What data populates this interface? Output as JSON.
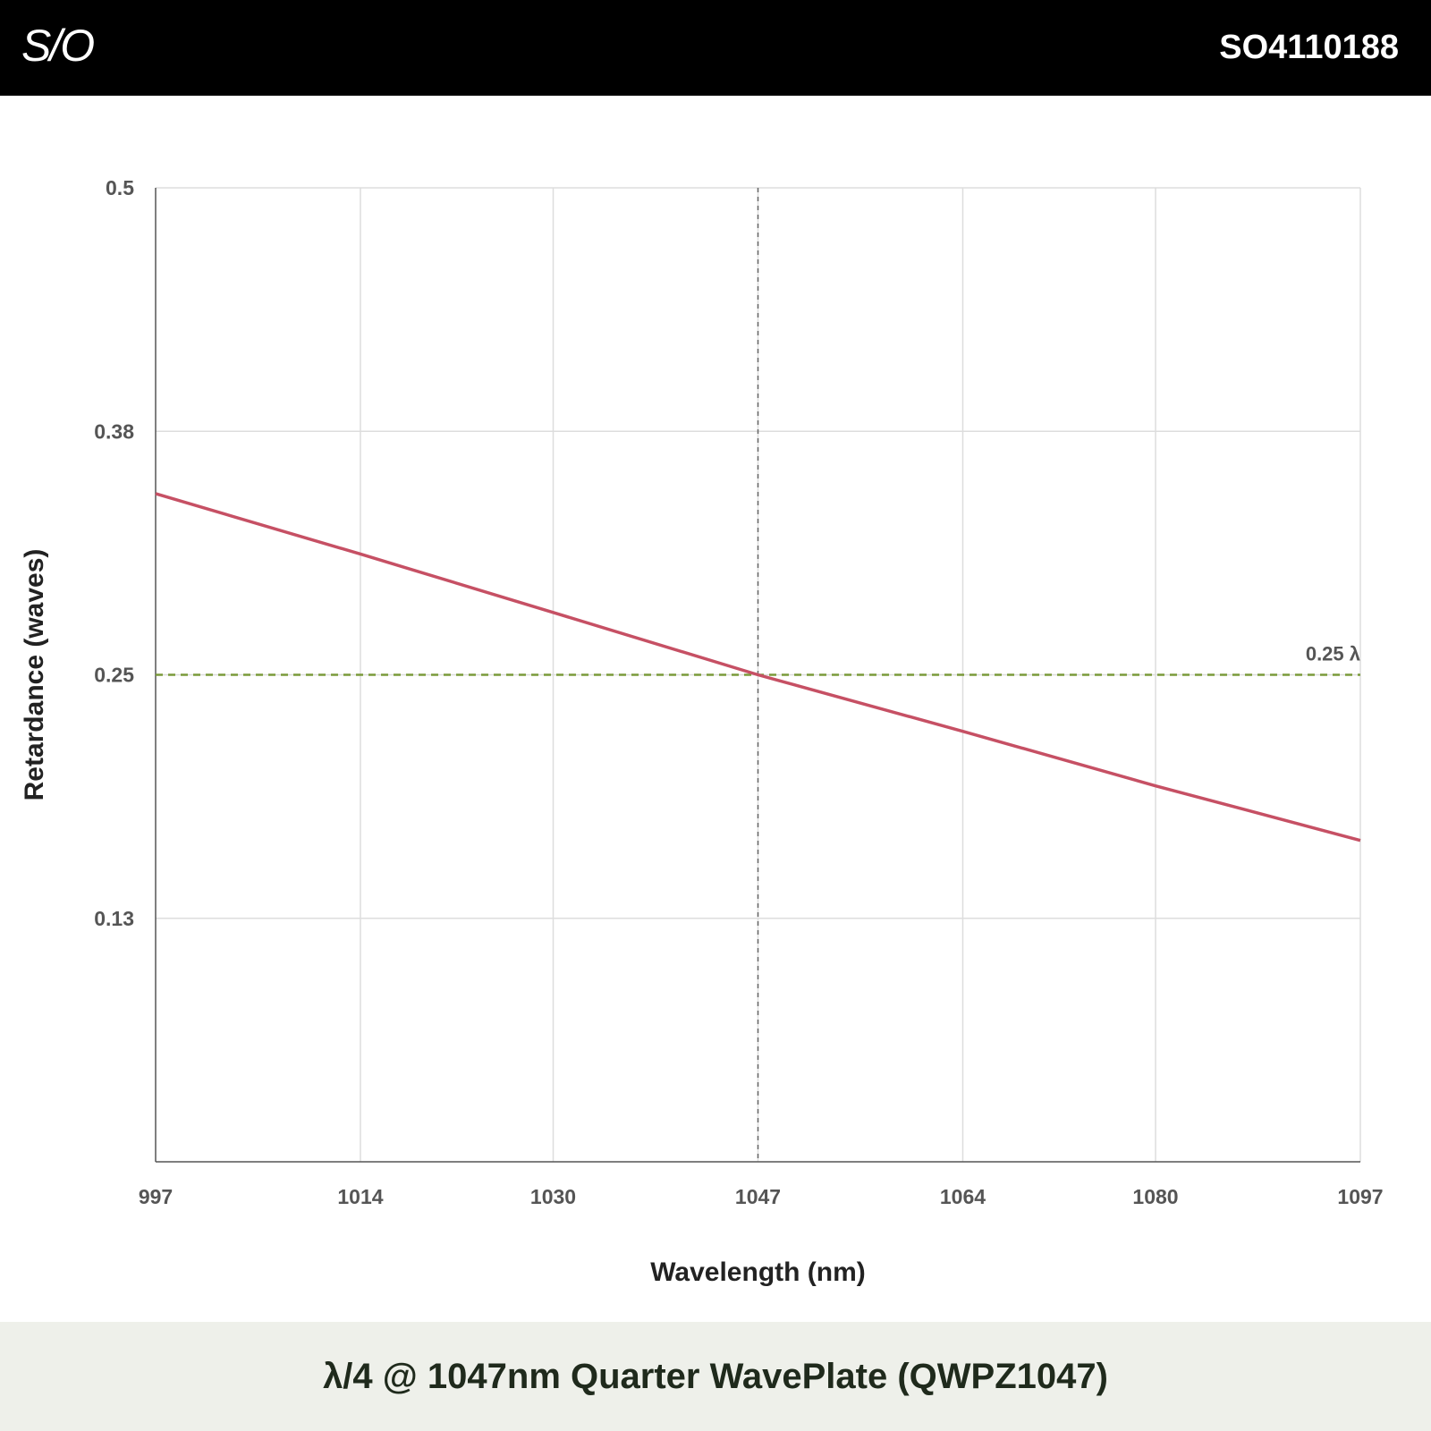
{
  "header": {
    "logo_text": "S/O",
    "part_number": "SO4110188"
  },
  "footer": {
    "product_title": "λ/4 @ 1047nm Quarter WavePlate (QWPZ1047)"
  },
  "colors": {
    "header_bg": "#000000",
    "footer_bg": "#eef0ea",
    "series_line": "#c65064",
    "reference_line": "#7a9a3a",
    "center_marker": "#666666",
    "grid": "#dddddd"
  },
  "chart_data": {
    "type": "line",
    "title": "",
    "xlabel": "Wavelength (nm)",
    "ylabel": "Retardance (waves)",
    "xlim": [
      997,
      1097
    ],
    "ylim": [
      0.0,
      0.5
    ],
    "x_ticks": [
      997,
      1014,
      1030,
      1047,
      1064,
      1080,
      1097
    ],
    "x_tick_labels": [
      "997",
      "1014",
      "1030",
      "1047",
      "1064",
      "1080",
      "1097"
    ],
    "y_ticks": [
      0.5,
      0.375,
      0.25,
      0.125
    ],
    "y_tick_labels": [
      "0.5",
      "0.38",
      "0.25",
      "0.13"
    ],
    "grid": true,
    "series": [
      {
        "x": [
          997,
          1014,
          1030,
          1047,
          1064,
          1080,
          1097
        ],
        "values": [
          0.343,
          0.312,
          0.282,
          0.25,
          0.221,
          0.193,
          0.165
        ]
      }
    ],
    "reference_lines": [
      {
        "orientation": "horizontal",
        "value": 0.25,
        "label": "0.25 λ",
        "style": "dashed"
      },
      {
        "orientation": "vertical",
        "value": 1047,
        "label": "",
        "style": "dashed"
      }
    ]
  }
}
